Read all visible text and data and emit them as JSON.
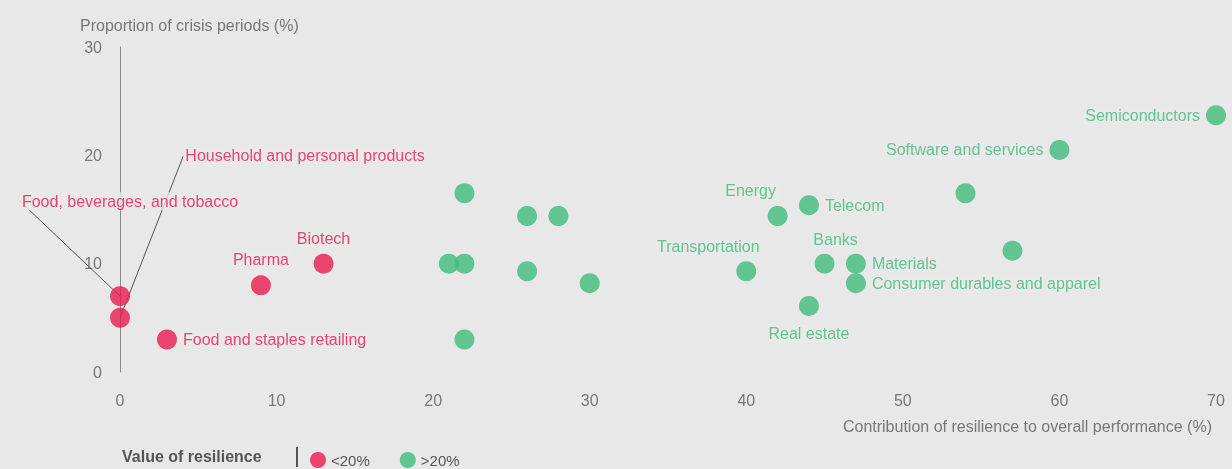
{
  "chart_data": {
    "type": "scatter",
    "xlabel": "Contribution of resilience to overall performance (%)",
    "ylabel": "Proportion of crisis periods (%)",
    "legend_title": "Value of resilience",
    "legend": "bottom left",
    "grid": false,
    "marker": "circle",
    "xlim": [
      0,
      70
    ],
    "xticks": [
      0,
      10,
      20,
      30,
      40,
      50,
      60,
      70
    ],
    "ylim": [
      0,
      30
    ],
    "yticks": [
      0,
      10,
      20,
      30
    ],
    "series": [
      {
        "name": "<20%",
        "color": "#e8194f",
        "x": [
          0,
          0,
          3,
          9,
          13
        ],
        "values": [
          7,
          5,
          3,
          8,
          10
        ]
      },
      {
        "name": ">20%",
        "color": "#3dbb7a",
        "x": [
          22,
          26,
          28,
          21,
          22,
          26,
          30,
          22,
          40,
          42,
          44,
          45,
          47,
          47,
          44,
          54,
          57,
          60,
          70
        ],
        "values": [
          16.5,
          14.4,
          14.4,
          10,
          10,
          9.3,
          8.2,
          3,
          9.3,
          14.4,
          15.4,
          10,
          10,
          8.2,
          6.1,
          16.5,
          11.2,
          20.5,
          23.7
        ]
      }
    ],
    "annotations": [
      {
        "text": "Food, beverages, and tobacco",
        "x": 0,
        "y": 7
      },
      {
        "text": "Household and personal products",
        "x": 0,
        "y": 5
      },
      {
        "text": "Food and staples retailing",
        "x": 3,
        "y": 3
      },
      {
        "text": "Pharma",
        "x": 9,
        "y": 8
      },
      {
        "text": "Biotech",
        "x": 13,
        "y": 10
      },
      {
        "text": "Transportation",
        "x": 40,
        "y": 9.3
      },
      {
        "text": "Energy",
        "x": 42,
        "y": 14.4
      },
      {
        "text": "Telecom",
        "x": 44,
        "y": 15.4
      },
      {
        "text": "Banks",
        "x": 45,
        "y": 10
      },
      {
        "text": "Materials",
        "x": 47,
        "y": 10
      },
      {
        "text": "Consumer durables and apparel",
        "x": 47,
        "y": 8.2
      },
      {
        "text": "Real estate",
        "x": 44,
        "y": 6.1
      },
      {
        "text": "Software and services",
        "x": 60,
        "y": 20.5
      },
      {
        "text": "Semiconductors",
        "x": 70,
        "y": 23.7
      }
    ]
  }
}
